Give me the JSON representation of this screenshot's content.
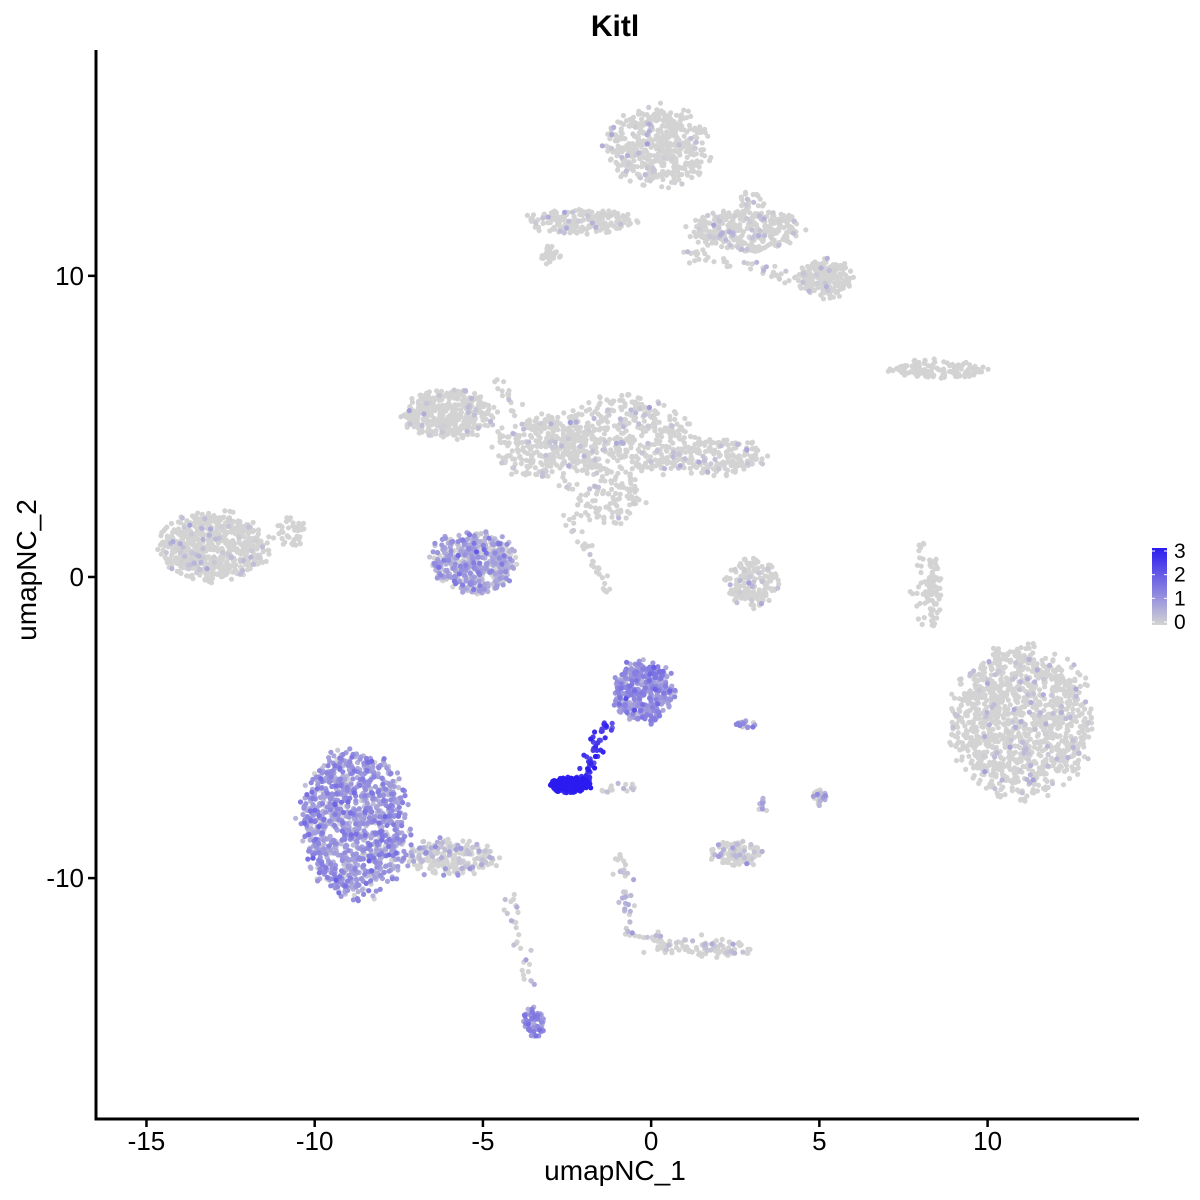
{
  "chart_data": {
    "type": "scatter",
    "title": "Kitl",
    "xlabel": "umapNC_1",
    "ylabel": "umapNC_2",
    "xlim": [
      -16.5,
      14.5
    ],
    "ylim": [
      -18,
      17.5
    ],
    "x_ticks": [
      -15,
      -10,
      -5,
      0,
      5,
      10
    ],
    "x_tick_labels": [
      "-15",
      "-10",
      "-5",
      "0",
      "5",
      "10"
    ],
    "y_ticks": [
      -10,
      0,
      10
    ],
    "y_tick_labels": [
      "-10",
      "0",
      "10"
    ],
    "grid": false,
    "legend": {
      "position": "right",
      "type": "colorbar",
      "range": [
        0,
        3
      ],
      "ticks": [
        0,
        1,
        2,
        3
      ],
      "tick_labels": [
        "0",
        "1",
        "2",
        "3"
      ],
      "low_color": "#d3d3d3",
      "high_color": "#2b1bf0"
    },
    "clusters": [
      {
        "cx": -13.0,
        "cy": 1.0,
        "rx": 1.6,
        "ry": 1.1,
        "n": 650,
        "expr": 0.02
      },
      {
        "cx": -10.7,
        "cy": 1.5,
        "rx": 0.4,
        "ry": 0.5,
        "n": 40,
        "expr": 0.0
      },
      {
        "cx": -6.0,
        "cy": 5.4,
        "rx": 1.3,
        "ry": 0.8,
        "n": 350,
        "expr": 0.02
      },
      {
        "cx": -3.2,
        "cy": 4.3,
        "rx": 1.5,
        "ry": 1.0,
        "n": 260,
        "expr": 0.03
      },
      {
        "cx": -0.8,
        "cy": 4.6,
        "rx": 2.0,
        "ry": 1.3,
        "n": 450,
        "expr": 0.03
      },
      {
        "cx": 1.8,
        "cy": 4.0,
        "rx": 1.5,
        "ry": 0.6,
        "n": 200,
        "expr": 0.05
      },
      {
        "cx": -1.2,
        "cy": 2.5,
        "rx": 1.0,
        "ry": 0.8,
        "n": 100,
        "expr": 0.02
      },
      {
        "cx": -5.3,
        "cy": 0.5,
        "rx": 1.2,
        "ry": 1.0,
        "n": 520,
        "expr": 0.7
      },
      {
        "cx": 0.2,
        "cy": 14.3,
        "rx": 1.5,
        "ry": 1.3,
        "n": 480,
        "expr": 0.02
      },
      {
        "cx": -2.1,
        "cy": 11.8,
        "rx": 1.6,
        "ry": 0.4,
        "n": 200,
        "expr": 0.03
      },
      {
        "cx": 2.8,
        "cy": 11.5,
        "rx": 1.6,
        "ry": 0.7,
        "n": 350,
        "expr": 0.03
      },
      {
        "cx": 5.2,
        "cy": 9.9,
        "rx": 0.8,
        "ry": 0.6,
        "n": 220,
        "expr": 0.03
      },
      {
        "cx": 8.5,
        "cy": 6.9,
        "rx": 1.4,
        "ry": 0.3,
        "n": 130,
        "expr": 0.0
      },
      {
        "cx": 3.0,
        "cy": -0.2,
        "rx": 0.8,
        "ry": 0.8,
        "n": 160,
        "expr": 0.08
      },
      {
        "cx": 8.4,
        "cy": -0.4,
        "rx": 0.2,
        "ry": 1.2,
        "n": 60,
        "expr": 0.0
      },
      {
        "cx": 11.0,
        "cy": -4.8,
        "rx": 2.0,
        "ry": 2.4,
        "n": 1200,
        "expr": 0.03
      },
      {
        "cx": -0.2,
        "cy": -3.8,
        "rx": 0.9,
        "ry": 1.0,
        "n": 380,
        "expr": 1.0
      },
      {
        "cx": -2.4,
        "cy": -6.9,
        "rx": 0.6,
        "ry": 0.25,
        "n": 220,
        "expr": 2.9
      },
      {
        "cx": -8.8,
        "cy": -8.2,
        "rx": 1.6,
        "ry": 2.3,
        "n": 1100,
        "expr": 0.9
      },
      {
        "cx": -6.0,
        "cy": -9.3,
        "rx": 1.4,
        "ry": 0.6,
        "n": 220,
        "expr": 0.35
      },
      {
        "cx": -3.5,
        "cy": -14.8,
        "rx": 0.3,
        "ry": 0.5,
        "n": 70,
        "expr": 1.0
      },
      {
        "cx": 2.5,
        "cy": -9.2,
        "rx": 0.8,
        "ry": 0.4,
        "n": 110,
        "expr": 0.25
      },
      {
        "cx": 1.5,
        "cy": -12.3,
        "rx": 1.5,
        "ry": 0.3,
        "n": 70,
        "expr": 0.2
      },
      {
        "cx": 2.8,
        "cy": -4.9,
        "rx": 0.3,
        "ry": 0.12,
        "n": 20,
        "expr": 0.9
      },
      {
        "cx": 5.0,
        "cy": -7.3,
        "rx": 0.2,
        "ry": 0.3,
        "n": 25,
        "expr": 0.5
      },
      {
        "cx": 3.3,
        "cy": -7.6,
        "rx": 0.15,
        "ry": 0.25,
        "n": 10,
        "expr": 0.5
      },
      {
        "cx": -3.0,
        "cy": 10.7,
        "rx": 0.3,
        "ry": 0.3,
        "n": 30,
        "expr": 0.0
      },
      {
        "cx": 3.0,
        "cy": 12.5,
        "rx": 0.5,
        "ry": 0.3,
        "n": 20,
        "expr": 0.02
      }
    ],
    "trails": [
      {
        "from": [
          -1.3,
          -4.9
        ],
        "to": [
          -2.0,
          -6.7
        ],
        "n": 50,
        "expr": 2.5
      },
      {
        "from": [
          -4.6,
          6.5
        ],
        "to": [
          -2.3,
          2.8
        ],
        "n": 45,
        "expr": 0.1
      },
      {
        "from": [
          -2.5,
          2.0
        ],
        "to": [
          -1.2,
          -0.6
        ],
        "n": 35,
        "expr": 0.03
      },
      {
        "from": [
          -0.9,
          -9.3
        ],
        "to": [
          -0.6,
          -12.0
        ],
        "n": 40,
        "expr": 0.35
      },
      {
        "from": [
          -4.3,
          -10.4
        ],
        "to": [
          -3.6,
          -13.8
        ],
        "n": 30,
        "expr": 0.15
      },
      {
        "from": [
          -0.2,
          -12.0
        ],
        "to": [
          2.6,
          -12.5
        ],
        "n": 40,
        "expr": 0.2
      },
      {
        "from": [
          1.0,
          10.8
        ],
        "to": [
          4.6,
          9.8
        ],
        "n": 50,
        "expr": 0.03
      },
      {
        "from": [
          8.2,
          1.2
        ],
        "to": [
          7.9,
          -1.5
        ],
        "n": 30,
        "expr": 0.0
      },
      {
        "from": [
          -0.4,
          -6.9
        ],
        "to": [
          -1.5,
          -7.1
        ],
        "n": 15,
        "expr": 0.4
      }
    ]
  }
}
